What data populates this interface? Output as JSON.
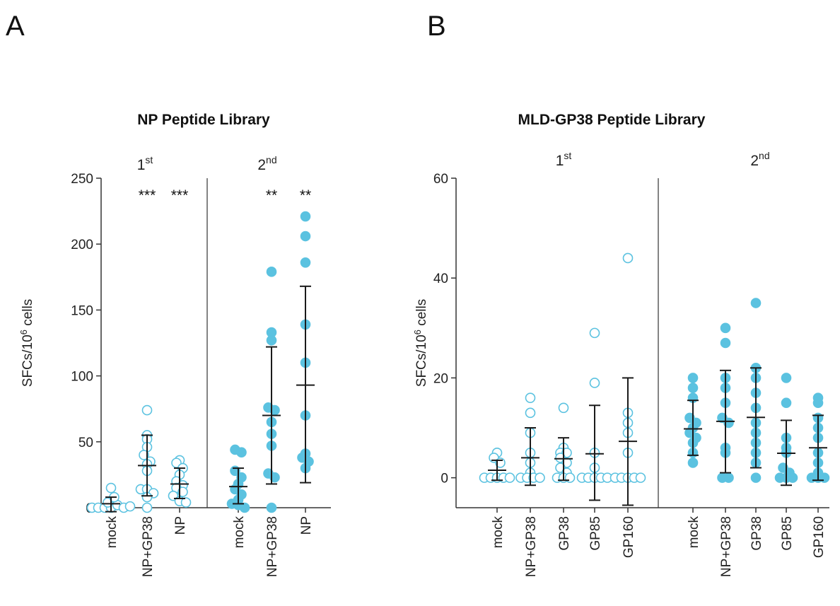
{
  "panels": [
    {
      "letter": "A"
    },
    {
      "letter": "B"
    }
  ],
  "colors": {
    "point": "#5bc2e0",
    "axis": "#333333",
    "errorbar": "#1a1a1a"
  },
  "chart_data": [
    {
      "type": "scatter",
      "title": "NP Peptide Library",
      "ylabel_main": "SFCs/10",
      "ylabel_sup": "6",
      "ylabel_tail": " cells",
      "ylim": [
        0,
        250
      ],
      "yticks": [
        0,
        50,
        100,
        150,
        200,
        250
      ],
      "groups": [
        {
          "label": "1",
          "label_sup": "st",
          "filled": false,
          "categories": [
            0,
            1,
            2
          ]
        },
        {
          "label": "2",
          "label_sup": "nd",
          "filled": true,
          "categories": [
            3,
            4,
            5
          ]
        }
      ],
      "categories": [
        {
          "name": "mock",
          "mean": 3,
          "sd_low": -3,
          "sd_high": 8,
          "sig": "",
          "points": [
            0,
            0,
            0,
            0,
            2,
            4,
            8,
            15,
            0,
            1
          ]
        },
        {
          "name": "NP+GP38",
          "mean": 32,
          "sd_low": 9,
          "sd_high": 55,
          "sig": "***",
          "points": [
            74,
            55,
            52,
            46,
            40,
            35,
            33,
            28,
            14,
            14,
            11,
            8,
            0
          ]
        },
        {
          "name": "NP",
          "mean": 18,
          "sd_low": 7,
          "sd_high": 30,
          "sig": "***",
          "points": [
            36,
            34,
            30,
            25,
            20,
            17,
            15,
            12,
            9,
            5,
            4
          ]
        },
        {
          "name": "mock",
          "mean": 16,
          "sd_low": 3,
          "sd_high": 30,
          "sig": "",
          "points": [
            44,
            42,
            28,
            23,
            18,
            14,
            10,
            6,
            3,
            2,
            0
          ]
        },
        {
          "name": "NP+GP38",
          "mean": 70,
          "sd_low": 18,
          "sd_high": 122,
          "sig": "**",
          "points": [
            179,
            133,
            127,
            76,
            74,
            65,
            56,
            47,
            26,
            23,
            0
          ]
        },
        {
          "name": "NP",
          "mean": 93,
          "sd_low": 19,
          "sd_high": 168,
          "sig": "**",
          "points": [
            221,
            206,
            186,
            139,
            110,
            70,
            41,
            38,
            35,
            30
          ]
        }
      ]
    },
    {
      "type": "scatter",
      "title": "MLD-GP38 Peptide Library",
      "ylabel_main": "SFCs/10",
      "ylabel_sup": "6",
      "ylabel_tail": " cells",
      "ylim": [
        -6,
        60
      ],
      "yticks": [
        0,
        20,
        40,
        60
      ],
      "groups": [
        {
          "label": "1",
          "label_sup": "st",
          "filled": false,
          "categories": [
            0,
            1,
            2,
            3,
            4
          ]
        },
        {
          "label": "2",
          "label_sup": "nd",
          "filled": true,
          "categories": [
            5,
            6,
            7,
            8,
            9
          ]
        }
      ],
      "categories": [
        {
          "name": "mock",
          "mean": 1.5,
          "sd_low": -0.5,
          "sd_high": 3.5,
          "sig": "",
          "points": [
            5,
            4,
            3,
            0,
            0,
            0,
            0,
            0
          ]
        },
        {
          "name": "NP+GP38",
          "mean": 4,
          "sd_low": -1.5,
          "sd_high": 10,
          "sig": "",
          "points": [
            16,
            13,
            9,
            5,
            3,
            1,
            0,
            0,
            0,
            0
          ]
        },
        {
          "name": "GP38",
          "mean": 3.8,
          "sd_low": -0.5,
          "sd_high": 8,
          "sig": "",
          "points": [
            14,
            6,
            5,
            5,
            4,
            3,
            2,
            1,
            0,
            0,
            0
          ]
        },
        {
          "name": "GP85",
          "mean": 4.8,
          "sd_low": -4.5,
          "sd_high": 14.5,
          "sig": "",
          "points": [
            29,
            19,
            5,
            2,
            0,
            0,
            0,
            0,
            0
          ]
        },
        {
          "name": "GP160",
          "mean": 7.3,
          "sd_low": -5.5,
          "sd_high": 20,
          "sig": "",
          "points": [
            44,
            13,
            11,
            9,
            5,
            0,
            0,
            0,
            0,
            0
          ]
        }
      ]
    }
  ],
  "chart_b_second": [
    {
      "name": "mock",
      "mean": 9.8,
      "sd_low": 4.5,
      "sd_high": 15.5,
      "sig": "",
      "points": [
        20,
        18,
        16,
        12,
        11,
        10,
        9,
        8,
        7,
        5,
        3
      ]
    },
    {
      "name": "NP+GP38",
      "mean": 11.3,
      "sd_low": 1,
      "sd_high": 21.5,
      "sig": "",
      "points": [
        30,
        27,
        20,
        18,
        15,
        12,
        11,
        6,
        5,
        0,
        0
      ]
    },
    {
      "name": "GP38",
      "mean": 12.1,
      "sd_low": 2,
      "sd_high": 22,
      "sig": "",
      "points": [
        35,
        22,
        20,
        17,
        14,
        11,
        9,
        7,
        5,
        3,
        0
      ]
    },
    {
      "name": "GP85",
      "mean": 4.9,
      "sd_low": -1.5,
      "sd_high": 11.5,
      "sig": "",
      "points": [
        20,
        15,
        8,
        6,
        5,
        2,
        1,
        0,
        0,
        0
      ]
    },
    {
      "name": "GP160",
      "mean": 6,
      "sd_low": -0.5,
      "sd_high": 12.5,
      "sig": "",
      "points": [
        16,
        15,
        12,
        10,
        8,
        5,
        3,
        1,
        0,
        0,
        0
      ]
    }
  ]
}
